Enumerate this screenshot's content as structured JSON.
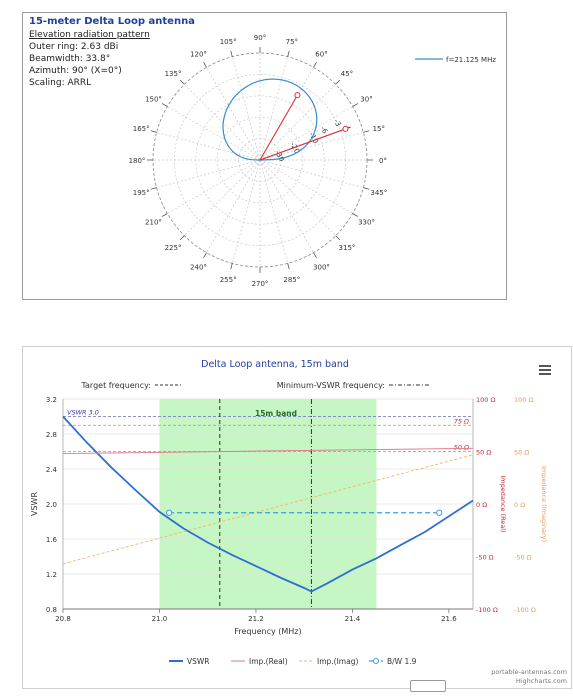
{
  "polar": {
    "title": "15-meter Delta Loop antenna",
    "subtitle": "Elevation radiation pattern",
    "info": [
      "Outer ring: 2.63 dBi",
      "Beamwidth: 33.8°",
      "Azimuth: 90° (X=0°)",
      "Scaling: ARRL"
    ],
    "legend_label": "f=21.125 MHz",
    "angle_labels": [
      "0°",
      "15°",
      "30°",
      "45°",
      "60°",
      "75°",
      "90°",
      "105°",
      "120°",
      "135°",
      "150°",
      "165°",
      "180°",
      "195°",
      "210°",
      "225°",
      "240°",
      "255°",
      "270°",
      "285°",
      "300°",
      "315°",
      "330°",
      "345°"
    ],
    "radial_labels": [
      "-3",
      "-6",
      "-10",
      "-20",
      "-30"
    ],
    "colors": {
      "pattern": "#3a8ccf",
      "beam": "#e0303a",
      "grid": "#9a9a9a"
    }
  },
  "chart_data": {
    "type": "line",
    "title": "Delta Loop antenna,  15m band",
    "xlabel": "Frequency (MHz)",
    "ylabel": "VSWR",
    "xlim": [
      20.8,
      21.65
    ],
    "ylim": [
      0.8,
      3.2
    ],
    "x_ticks": [
      "20.8",
      "21.0",
      "21.2",
      "21.4",
      "21.6"
    ],
    "y_ticks": [
      "0.8",
      "1.2",
      "1.6",
      "2.0",
      "2.4",
      "2.8",
      "3.2"
    ],
    "band": {
      "label": "15m band",
      "from": 21.0,
      "to": 21.45
    },
    "target_frequency": 21.125,
    "min_vswr_frequency": 21.315,
    "header_labels": {
      "target": "Target frequency:",
      "min": "Minimum-VSWR frequency:"
    },
    "vswr_ref_lines": [
      {
        "label": "VSWR 3.0",
        "value": 3.0
      }
    ],
    "impedance_ref_lines": [
      {
        "label": "75 Ω",
        "value": 75
      },
      {
        "label": "50 Ω",
        "value": 50
      }
    ],
    "y2_label": "Impedance (Real)",
    "y2_ticks": [
      "100 Ω",
      "50 Ω",
      "0 Ω",
      "-50 Ω",
      "-100 Ω"
    ],
    "y2_range": [
      -100,
      100
    ],
    "y3_label": "Impedance (Imaginary)",
    "y3_ticks": [
      "100 Ω",
      "50 Ω",
      "0 Ω",
      "-50 Ω",
      "-100 Ω"
    ],
    "series": [
      {
        "name": "VSWR",
        "color": "#2f6fd0",
        "x": [
          20.8,
          20.85,
          20.9,
          20.95,
          21.0,
          21.05,
          21.1,
          21.15,
          21.2,
          21.25,
          21.3,
          21.315,
          21.35,
          21.4,
          21.45,
          21.5,
          21.55,
          21.6,
          21.65
        ],
        "y": [
          3.0,
          2.7,
          2.42,
          2.16,
          1.91,
          1.72,
          1.56,
          1.42,
          1.29,
          1.16,
          1.04,
          1.0,
          1.1,
          1.25,
          1.38,
          1.53,
          1.68,
          1.86,
          2.04
        ]
      },
      {
        "name": "Imp.(Real)",
        "color": "#e07a8a",
        "x": [
          20.8,
          21.65
        ],
        "y": [
          48,
          53
        ]
      },
      {
        "name": "Imp.(Imag)",
        "color": "#f0b86a",
        "x": [
          20.8,
          21.65
        ],
        "y": [
          -57,
          47
        ]
      }
    ],
    "bandwidth": {
      "name": "B/W 1.9",
      "from": 21.02,
      "to": 21.58,
      "vswr": 1.9,
      "color": "#3aa0e0"
    },
    "credits": [
      "portable-antennas.com",
      "Highcharts.com"
    ]
  }
}
